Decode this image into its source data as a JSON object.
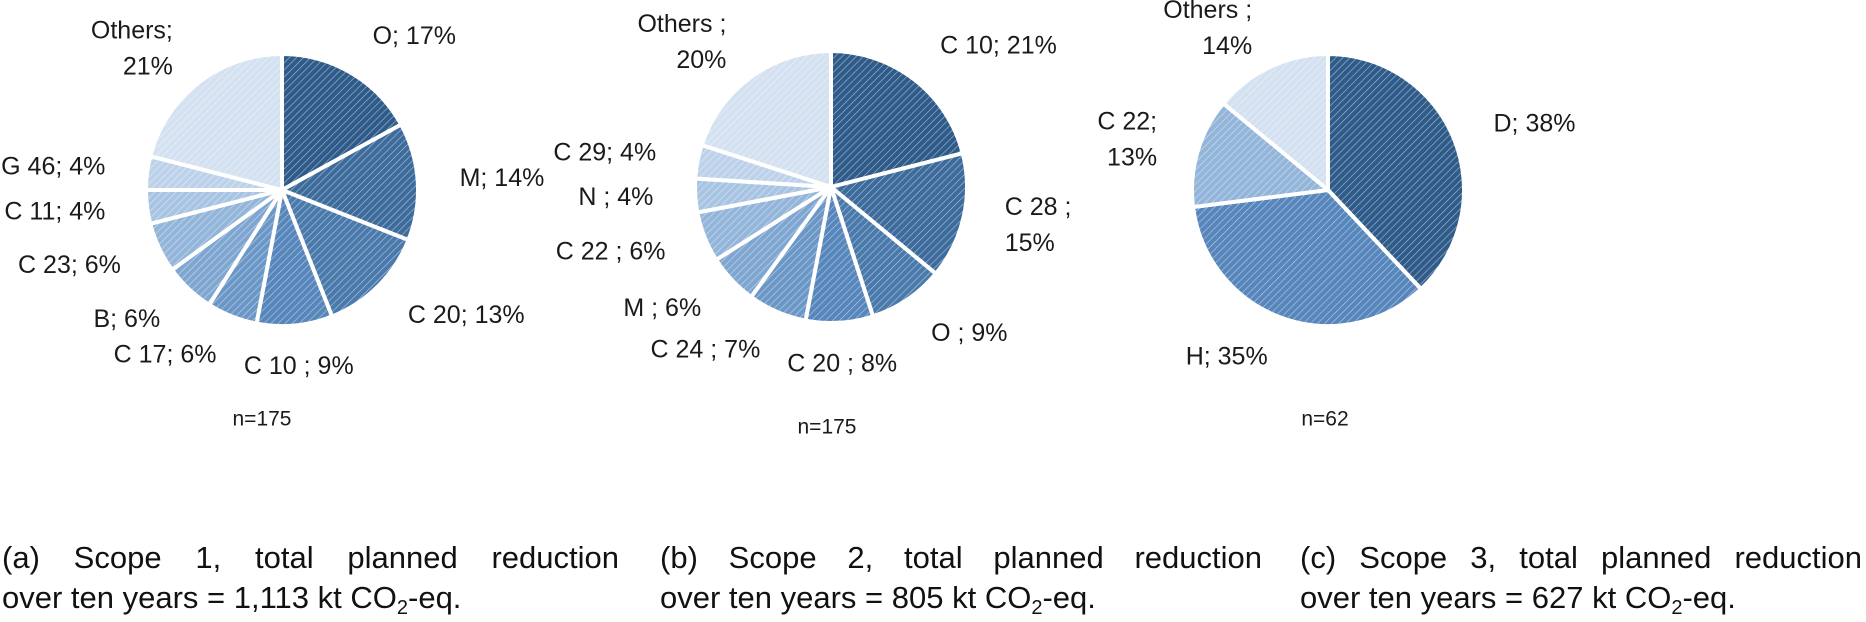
{
  "chart_data": [
    {
      "type": "pie",
      "categories": [
        "O",
        "M",
        "C 20",
        "C 10",
        "C 17",
        "B",
        "C 23",
        "C 11",
        "G 46",
        "Others"
      ],
      "values": [
        17,
        14,
        13,
        9,
        6,
        6,
        6,
        4,
        4,
        21
      ],
      "data_labels": [
        "O; 17%",
        "M; 14%",
        "C 20; 13%",
        "C 10 ; 9%",
        "C 17; 6%",
        "B; 6%",
        "C 23; 6%",
        "C 11; 4%",
        "G 46; 4%",
        "Others;|21%"
      ],
      "n_label": "n=175",
      "caption_line1": "(a) Scope 1, total planned reduction",
      "caption_line2_prefix": "over ten years = 1,113 kt CO",
      "caption_sub": "2",
      "caption_line2_suffix": "-eq."
    },
    {
      "type": "pie",
      "categories": [
        "C 10",
        "C 28",
        "O",
        "C 20",
        "C 24",
        "M",
        "C 22",
        "N",
        "C 29",
        "Others"
      ],
      "values": [
        21,
        15,
        9,
        8,
        7,
        6,
        6,
        4,
        4,
        20
      ],
      "data_labels": [
        "C 10; 21%",
        "C 28 ;|15%",
        "O ; 9%",
        "C 20 ; 8%",
        "C 24 ; 7%",
        "M ; 6%",
        "C 22 ; 6%",
        "N ; 4%",
        "C 29; 4%",
        "Others ;|20%"
      ],
      "n_label": "n=175",
      "caption_line1": "(b) Scope 2, total planned reduction",
      "caption_line2_prefix": "over ten years = 805 kt CO",
      "caption_sub": "2",
      "caption_line2_suffix": "-eq."
    },
    {
      "type": "pie",
      "categories": [
        "D",
        "H",
        "C 22",
        "Others"
      ],
      "values": [
        38,
        35,
        13,
        14
      ],
      "data_labels": [
        "D; 38%",
        "H; 35%",
        "C 22;|13%",
        "Others ;|14%"
      ],
      "n_label": "n=62",
      "caption_line1": "(c) Scope 3, total planned reduction",
      "caption_line2_prefix": "over ten years = 627 kt CO",
      "caption_sub": "2",
      "caption_line2_suffix": "-eq."
    }
  ],
  "colors": {
    "slice_palette": [
      "#2f5b8a",
      "#3d6b9c",
      "#4a7aac",
      "#5686bb",
      "#6b97c7",
      "#7ea6d1",
      "#93b5da",
      "#a8c4e3",
      "#bdd2ea",
      "#d3e1f1"
    ],
    "separator": "#ffffff",
    "text": "#1a1a1a"
  }
}
